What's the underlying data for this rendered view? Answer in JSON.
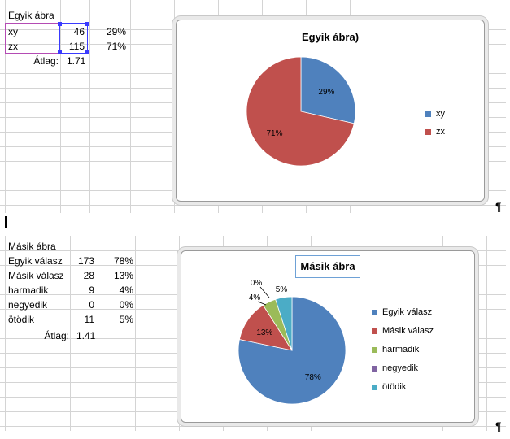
{
  "table1": {
    "title": "Egyik ábra",
    "rows": [
      {
        "label": "xy",
        "value": "46",
        "pct": "29%"
      },
      {
        "label": "zx",
        "value": "115",
        "pct": "71%"
      }
    ],
    "avg_label": "Átlag:",
    "avg_value": "1.71"
  },
  "table2": {
    "title": "Másik ábra",
    "rows": [
      {
        "label": "Egyik válasz",
        "value": "173",
        "pct": "78%"
      },
      {
        "label": "Másik válasz",
        "value": "28",
        "pct": "13%"
      },
      {
        "label": "harmadik",
        "value": "9",
        "pct": "4%"
      },
      {
        "label": "negyedik",
        "value": "0",
        "pct": "0%"
      },
      {
        "label": "ötödik",
        "value": "11",
        "pct": "5%"
      }
    ],
    "avg_label": "Átlag:",
    "avg_value": "1.41"
  },
  "paragraph_mark": "¶",
  "chart_data": [
    {
      "type": "pie",
      "title": "Egyik ábra)",
      "categories": [
        "xy",
        "zx"
      ],
      "values": [
        46,
        115
      ],
      "data_labels": [
        "29%",
        "71%"
      ],
      "colors": [
        "#4f81bd",
        "#c0504d"
      ],
      "legend": "right"
    },
    {
      "type": "pie",
      "title": "Másik ábra",
      "categories": [
        "Egyik válasz",
        "Másik válasz",
        "harmadik",
        "negyedik",
        "ötödik"
      ],
      "values": [
        173,
        28,
        9,
        0,
        11
      ],
      "data_labels": [
        "78%",
        "13%",
        "4%",
        "0%",
        "5%"
      ],
      "colors": [
        "#4f81bd",
        "#c0504d",
        "#9bbb59",
        "#8064a2",
        "#4bacc6"
      ],
      "legend": "right"
    }
  ]
}
